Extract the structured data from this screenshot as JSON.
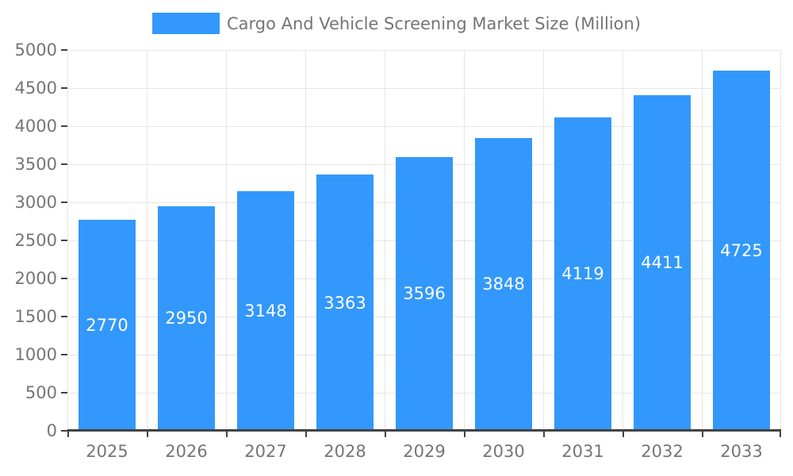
{
  "chart_data": {
    "type": "bar",
    "title": "Cargo And Vehicle Screening Market Size (Million)",
    "categories": [
      "2025",
      "2026",
      "2027",
      "2028",
      "2029",
      "2030",
      "2031",
      "2032",
      "2033"
    ],
    "values": [
      2770,
      2950,
      3148,
      3363,
      3596,
      3848,
      4119,
      4411,
      4725
    ],
    "xlabel": "",
    "ylabel": "",
    "ylim": [
      0,
      5000
    ],
    "ytick_step": 500,
    "y_tick_labels": [
      "0",
      "500",
      "1000",
      "1500",
      "2000",
      "2500",
      "3000",
      "3500",
      "4000",
      "4500",
      "5000"
    ],
    "grid": true,
    "legend_position": "top",
    "bar_value_labels_visible": true,
    "colors": {
      "bar": "#3398FB",
      "bar_label_text": "#FFFFFF",
      "axis_text": "#757575",
      "gridline": "#E6E6E6",
      "axis_line": "#424242",
      "background": "#FFFFFF"
    }
  }
}
